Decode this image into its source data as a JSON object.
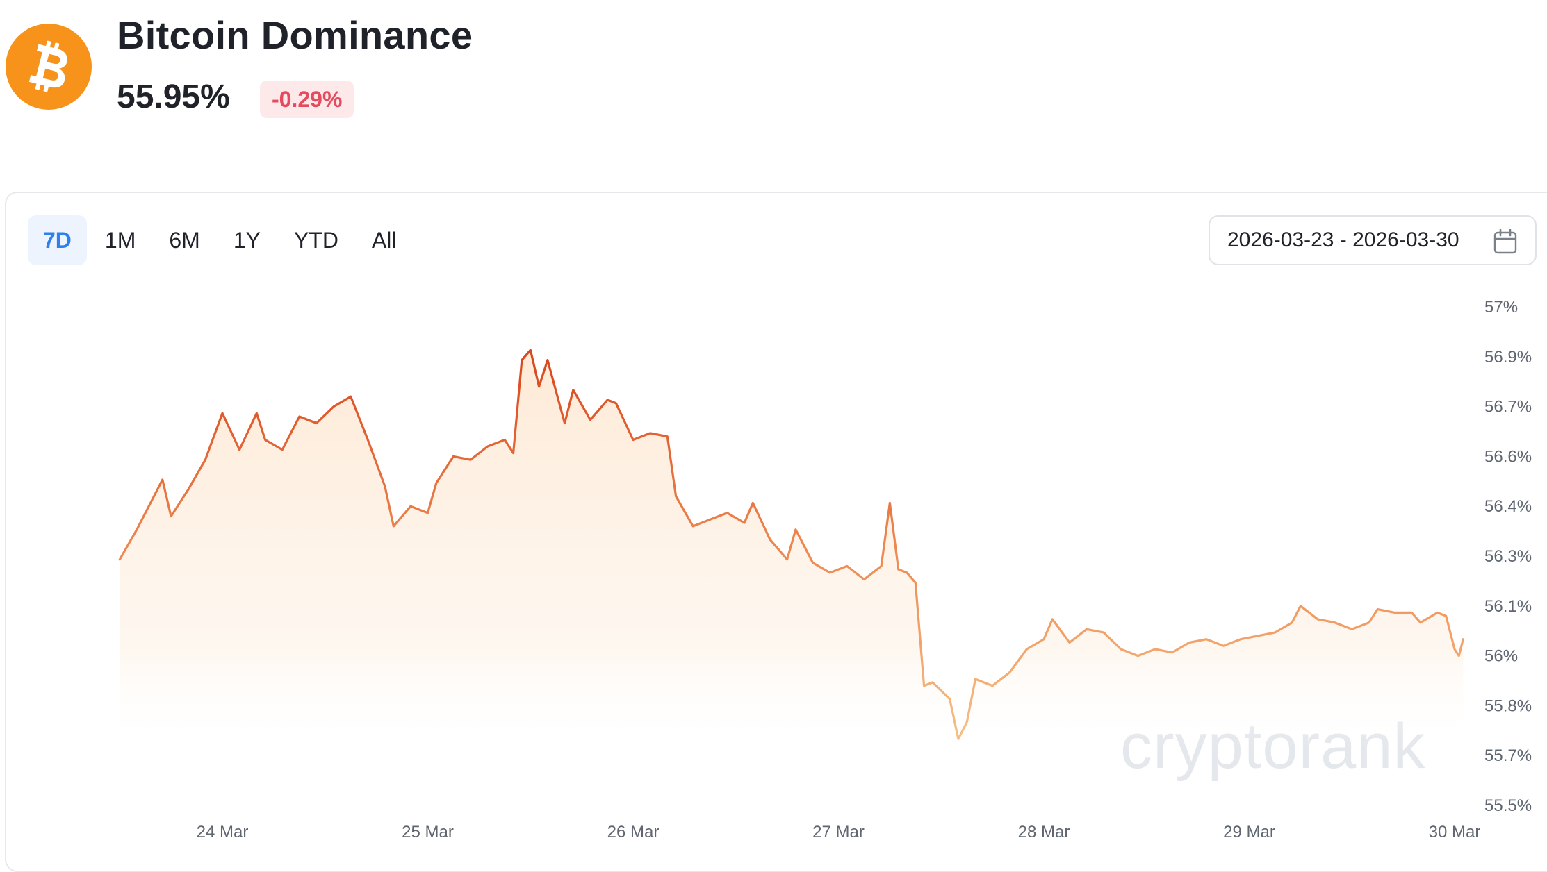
{
  "header": {
    "title": "Bitcoin Dominance",
    "value": "55.95%",
    "change": "-0.29%",
    "coin_icon": "bitcoin-logo-icon",
    "colors": {
      "coin": "#f7931a",
      "change_text": "#e54b5c",
      "change_bg": "#fde8ea"
    }
  },
  "toolbar": {
    "ranges": [
      {
        "label": "7D",
        "active": true
      },
      {
        "label": "1M",
        "active": false
      },
      {
        "label": "6M",
        "active": false
      },
      {
        "label": "1Y",
        "active": false
      },
      {
        "label": "YTD",
        "active": false
      },
      {
        "label": "All",
        "active": false
      }
    ],
    "date_range": "2026-03-23 - 2026-03-30",
    "date_icon": "calendar-icon"
  },
  "watermark": "cryptorank",
  "chart_data": {
    "type": "area",
    "title": "",
    "xlabel": "",
    "ylabel": "",
    "x_ticks": [
      "24 Mar",
      "25 Mar",
      "26 Mar",
      "27 Mar",
      "28 Mar",
      "29 Mar",
      "30 Mar"
    ],
    "y_ticks": [
      "57%",
      "56.9%",
      "56.7%",
      "56.6%",
      "56.4%",
      "56.3%",
      "56.1%",
      "56%",
      "55.8%",
      "55.7%",
      "55.5%"
    ],
    "ylim": [
      55.5,
      57.0
    ],
    "xlim": [
      "2026-03-23 12:00",
      "2026-03-30 00:00"
    ],
    "grid": false,
    "legend": "none",
    "colors": {
      "line_high": "#d9481f",
      "line_low": "#f6b779",
      "fill": "#fde6cf"
    },
    "series": [
      {
        "values": [
          [
            "2026-03-23 12:00",
            56.24
          ],
          [
            "2026-03-23 14:00",
            56.33
          ],
          [
            "2026-03-23 16:00",
            56.43
          ],
          [
            "2026-03-23 17:00",
            56.48
          ],
          [
            "2026-03-23 18:00",
            56.37
          ],
          [
            "2026-03-23 20:00",
            56.45
          ],
          [
            "2026-03-23 22:00",
            56.54
          ],
          [
            "2026-03-24 00:00",
            56.68
          ],
          [
            "2026-03-24 02:00",
            56.57
          ],
          [
            "2026-03-24 04:00",
            56.68
          ],
          [
            "2026-03-24 05:00",
            56.6
          ],
          [
            "2026-03-24 07:00",
            56.57
          ],
          [
            "2026-03-24 09:00",
            56.67
          ],
          [
            "2026-03-24 11:00",
            56.65
          ],
          [
            "2026-03-24 13:00",
            56.7
          ],
          [
            "2026-03-24 15:00",
            56.73
          ],
          [
            "2026-03-24 17:00",
            56.6
          ],
          [
            "2026-03-24 19:00",
            56.46
          ],
          [
            "2026-03-24 20:00",
            56.34
          ],
          [
            "2026-03-24 22:00",
            56.4
          ],
          [
            "2026-03-25 00:00",
            56.38
          ],
          [
            "2026-03-25 01:00",
            56.47
          ],
          [
            "2026-03-25 03:00",
            56.55
          ],
          [
            "2026-03-25 05:00",
            56.54
          ],
          [
            "2026-03-25 07:00",
            56.58
          ],
          [
            "2026-03-25 09:00",
            56.6
          ],
          [
            "2026-03-25 10:00",
            56.56
          ],
          [
            "2026-03-25 11:00",
            56.84
          ],
          [
            "2026-03-25 12:00",
            56.87
          ],
          [
            "2026-03-25 13:00",
            56.76
          ],
          [
            "2026-03-25 14:00",
            56.84
          ],
          [
            "2026-03-25 16:00",
            56.65
          ],
          [
            "2026-03-25 17:00",
            56.75
          ],
          [
            "2026-03-25 19:00",
            56.66
          ],
          [
            "2026-03-25 21:00",
            56.72
          ],
          [
            "2026-03-25 22:00",
            56.71
          ],
          [
            "2026-03-26 00:00",
            56.6
          ],
          [
            "2026-03-26 02:00",
            56.62
          ],
          [
            "2026-03-26 04:00",
            56.61
          ],
          [
            "2026-03-26 05:00",
            56.43
          ],
          [
            "2026-03-26 07:00",
            56.34
          ],
          [
            "2026-03-26 09:00",
            56.36
          ],
          [
            "2026-03-26 11:00",
            56.38
          ],
          [
            "2026-03-26 13:00",
            56.35
          ],
          [
            "2026-03-26 14:00",
            56.41
          ],
          [
            "2026-03-26 16:00",
            56.3
          ],
          [
            "2026-03-26 18:00",
            56.24
          ],
          [
            "2026-03-26 19:00",
            56.33
          ],
          [
            "2026-03-26 21:00",
            56.23
          ],
          [
            "2026-03-26 23:00",
            56.2
          ],
          [
            "2026-03-27 01:00",
            56.22
          ],
          [
            "2026-03-27 03:00",
            56.18
          ],
          [
            "2026-03-27 05:00",
            56.22
          ],
          [
            "2026-03-27 06:00",
            56.41
          ],
          [
            "2026-03-27 07:00",
            56.21
          ],
          [
            "2026-03-27 08:00",
            56.2
          ],
          [
            "2026-03-27 09:00",
            56.17
          ],
          [
            "2026-03-27 10:00",
            55.86
          ],
          [
            "2026-03-27 11:00",
            55.87
          ],
          [
            "2026-03-27 13:00",
            55.82
          ],
          [
            "2026-03-27 14:00",
            55.7
          ],
          [
            "2026-03-27 15:00",
            55.75
          ],
          [
            "2026-03-27 16:00",
            55.88
          ],
          [
            "2026-03-27 18:00",
            55.86
          ],
          [
            "2026-03-27 20:00",
            55.9
          ],
          [
            "2026-03-27 22:00",
            55.97
          ],
          [
            "2026-03-28 00:00",
            56.0
          ],
          [
            "2026-03-28 01:00",
            56.06
          ],
          [
            "2026-03-28 03:00",
            55.99
          ],
          [
            "2026-03-28 05:00",
            56.03
          ],
          [
            "2026-03-28 07:00",
            56.02
          ],
          [
            "2026-03-28 09:00",
            55.97
          ],
          [
            "2026-03-28 11:00",
            55.95
          ],
          [
            "2026-03-28 13:00",
            55.97
          ],
          [
            "2026-03-28 15:00",
            55.96
          ],
          [
            "2026-03-28 17:00",
            55.99
          ],
          [
            "2026-03-28 19:00",
            56.0
          ],
          [
            "2026-03-28 21:00",
            55.98
          ],
          [
            "2026-03-28 23:00",
            56.0
          ],
          [
            "2026-03-29 01:00",
            56.01
          ],
          [
            "2026-03-29 03:00",
            56.02
          ],
          [
            "2026-03-29 05:00",
            56.05
          ],
          [
            "2026-03-29 06:00",
            56.1
          ],
          [
            "2026-03-29 08:00",
            56.06
          ],
          [
            "2026-03-29 10:00",
            56.05
          ],
          [
            "2026-03-29 12:00",
            56.03
          ],
          [
            "2026-03-29 14:00",
            56.05
          ],
          [
            "2026-03-29 15:00",
            56.09
          ],
          [
            "2026-03-29 17:00",
            56.08
          ],
          [
            "2026-03-29 19:00",
            56.08
          ],
          [
            "2026-03-29 20:00",
            56.05
          ],
          [
            "2026-03-29 22:00",
            56.08
          ],
          [
            "2026-03-29 23:00",
            56.07
          ],
          [
            "2026-03-30 00:00",
            55.97
          ],
          [
            "2026-03-30 00:30",
            55.95
          ],
          [
            "2026-03-30 01:00",
            56.0
          ]
        ]
      }
    ]
  }
}
